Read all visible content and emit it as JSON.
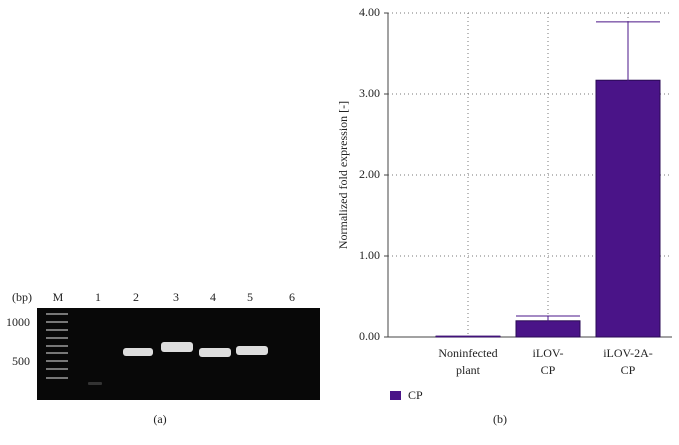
{
  "gel": {
    "size_label": "(bp)",
    "lanes": [
      "M",
      "1",
      "2",
      "3",
      "4",
      "5",
      "6"
    ],
    "markers": [
      "1000",
      "500"
    ],
    "panel_label": "(a)"
  },
  "chart_data": {
    "type": "bar",
    "panel_label": "(b)",
    "y_label": "Normalized fold expression [-]",
    "categories": [
      [
        "Noninfected",
        "plant"
      ],
      [
        "iLOV-",
        "CP"
      ],
      [
        "iLOV-2A-",
        "CP"
      ]
    ],
    "series": [
      {
        "name": "CP",
        "color": "#4a1488",
        "values": [
          0.01,
          0.2,
          3.17
        ],
        "errors": [
          0,
          0.06,
          0.72
        ]
      }
    ],
    "ylim": [
      0,
      4
    ],
    "yticks": [
      {
        "value": 0,
        "label": "0.00"
      },
      {
        "value": 1,
        "label": "1.00"
      },
      {
        "value": 2,
        "label": "2.00"
      },
      {
        "value": 3,
        "label": "3.00"
      },
      {
        "value": 4,
        "label": "4.00"
      }
    ],
    "grid": true,
    "legend": "bottom-left"
  }
}
